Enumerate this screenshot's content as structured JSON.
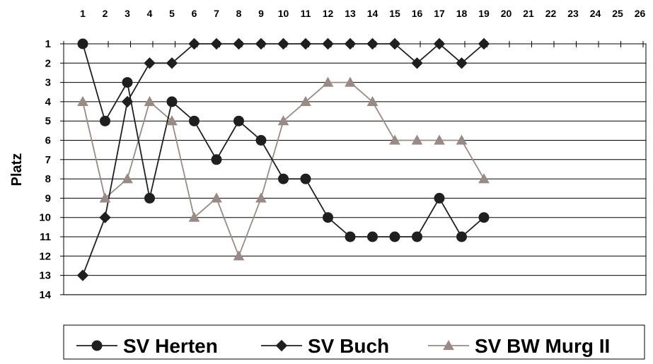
{
  "chart_data": {
    "type": "line",
    "ylabel": "Platz",
    "x_ticks": [
      1,
      2,
      3,
      4,
      5,
      6,
      7,
      8,
      9,
      10,
      11,
      12,
      13,
      14,
      15,
      16,
      17,
      18,
      19,
      20,
      21,
      22,
      23,
      24,
      25,
      26
    ],
    "y_ticks": [
      1,
      2,
      3,
      4,
      5,
      6,
      7,
      8,
      9,
      10,
      11,
      12,
      13,
      14
    ],
    "xlim": [
      1,
      26
    ],
    "ylim": [
      1,
      14
    ],
    "y_inverted": true,
    "x_axis_position": "top",
    "grid": "horizontal",
    "legend_position": "bottom",
    "series": [
      {
        "name": "SV Herten",
        "marker": "circle",
        "color": "#1f1f1f",
        "x": [
          1,
          2,
          3,
          4,
          5,
          6,
          7,
          8,
          9,
          10,
          11,
          12,
          13,
          14,
          15,
          16,
          17,
          18,
          19
        ],
        "values": [
          1,
          5,
          3,
          9,
          4,
          5,
          7,
          5,
          6,
          8,
          8,
          10,
          11,
          11,
          11,
          11,
          9,
          11,
          10
        ]
      },
      {
        "name": "SV Buch",
        "marker": "diamond",
        "color": "#1f1f1f",
        "x": [
          1,
          2,
          3,
          4,
          5,
          6,
          7,
          8,
          9,
          10,
          11,
          12,
          13,
          14,
          15,
          16,
          17,
          18,
          19
        ],
        "values": [
          13,
          10,
          4,
          2,
          2,
          1,
          1,
          1,
          1,
          1,
          1,
          1,
          1,
          1,
          1,
          2,
          1,
          2,
          1
        ]
      },
      {
        "name": "SV BW Murg II",
        "marker": "triangle",
        "color": "#9a8a86",
        "x": [
          1,
          2,
          3,
          4,
          5,
          6,
          7,
          8,
          9,
          10,
          11,
          12,
          13,
          14,
          15,
          16,
          17,
          18,
          19
        ],
        "values": [
          4,
          9,
          8,
          4,
          5,
          10,
          9,
          12,
          9,
          5,
          4,
          3,
          3,
          4,
          6,
          6,
          6,
          6,
          8
        ]
      }
    ]
  }
}
